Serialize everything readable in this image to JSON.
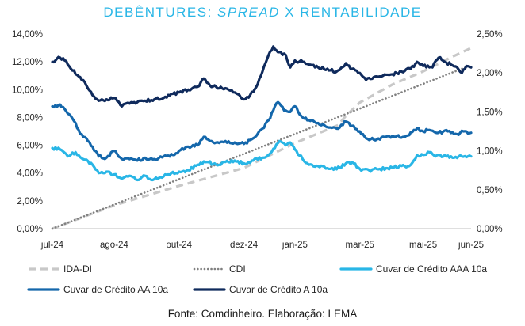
{
  "chart_data": {
    "type": "line",
    "title_parts": {
      "before": "DEBÊNTURES: ",
      "italic": "SPREAD",
      "after": " X RENTABILIDADE"
    },
    "x_labels": [
      "jul-24",
      "ago-24",
      "out-24",
      "dez-24",
      "jan-25",
      "mar-25",
      "mai-25",
      "jun-25"
    ],
    "x_label_index": [
      0,
      40,
      82,
      124,
      157,
      199,
      240,
      271
    ],
    "n_points": 272,
    "y_left": {
      "ticks": [
        "0,00%",
        "2,00%",
        "4,00%",
        "6,00%",
        "8,00%",
        "10,00%",
        "12,00%",
        "14,00%"
      ],
      "range": [
        0,
        14
      ]
    },
    "y_right": {
      "ticks": [
        "0,00%",
        "0,50%",
        "1,00%",
        "1,50%",
        "2,00%",
        "2,50%"
      ],
      "range": [
        0,
        2.5
      ]
    },
    "grid": false,
    "legend_position": "bottom",
    "series": [
      {
        "name": "IDA-DI",
        "axis": "right",
        "style": "dashed",
        "color": "#c8c8c8",
        "points": [
          [
            0,
            0
          ],
          [
            40,
            0.3
          ],
          [
            82,
            0.55
          ],
          [
            124,
            0.78
          ],
          [
            157,
            1.1
          ],
          [
            185,
            1.33
          ],
          [
            190,
            1.45
          ],
          [
            199,
            1.62
          ],
          [
            220,
            1.85
          ],
          [
            240,
            2.02
          ],
          [
            258,
            2.2
          ],
          [
            271,
            2.32
          ]
        ]
      },
      {
        "name": "CDI",
        "axis": "right",
        "style": "dotted",
        "color": "#808080",
        "points": [
          [
            0,
            0
          ],
          [
            271,
            2.1
          ]
        ]
      },
      {
        "name": "Cuvar de Crédito AAA 10a",
        "axis": "left",
        "style": "solid",
        "color": "#29b6e6",
        "points": [
          [
            0,
            5.8
          ],
          [
            5,
            5.7
          ],
          [
            10,
            5.2
          ],
          [
            15,
            5.5
          ],
          [
            20,
            5.0
          ],
          [
            26,
            4.6
          ],
          [
            30,
            4.0
          ],
          [
            35,
            4.1
          ],
          [
            40,
            3.9
          ],
          [
            45,
            3.6
          ],
          [
            50,
            3.8
          ],
          [
            55,
            3.5
          ],
          [
            60,
            3.8
          ],
          [
            65,
            3.5
          ],
          [
            70,
            3.7
          ],
          [
            75,
            3.9
          ],
          [
            82,
            4.1
          ],
          [
            88,
            4.2
          ],
          [
            94,
            4.6
          ],
          [
            100,
            4.8
          ],
          [
            106,
            4.6
          ],
          [
            112,
            4.8
          ],
          [
            118,
            4.9
          ],
          [
            124,
            4.7
          ],
          [
            130,
            4.9
          ],
          [
            136,
            5.1
          ],
          [
            140,
            5.3
          ],
          [
            144,
            5.8
          ],
          [
            147,
            6.3
          ],
          [
            151,
            6.0
          ],
          [
            154,
            6.2
          ],
          [
            157,
            5.7
          ],
          [
            162,
            5.0
          ],
          [
            166,
            4.6
          ],
          [
            172,
            4.5
          ],
          [
            180,
            4.3
          ],
          [
            186,
            4.4
          ],
          [
            190,
            4.7
          ],
          [
            195,
            4.7
          ],
          [
            199,
            4.3
          ],
          [
            205,
            4.2
          ],
          [
            212,
            4.3
          ],
          [
            220,
            4.4
          ],
          [
            228,
            4.5
          ],
          [
            232,
            4.6
          ],
          [
            236,
            5.3
          ],
          [
            240,
            5.3
          ],
          [
            244,
            5.5
          ],
          [
            248,
            5.2
          ],
          [
            254,
            5.3
          ],
          [
            260,
            5.1
          ],
          [
            265,
            5.2
          ],
          [
            271,
            5.2
          ]
        ]
      },
      {
        "name": "Cuvar de Crédito AA 10a",
        "axis": "left",
        "style": "solid",
        "color": "#1467ab",
        "points": [
          [
            0,
            8.8
          ],
          [
            4,
            8.9
          ],
          [
            8,
            8.6
          ],
          [
            12,
            8.1
          ],
          [
            15,
            7.6
          ],
          [
            18,
            6.8
          ],
          [
            22,
            6.5
          ],
          [
            26,
            5.9
          ],
          [
            30,
            5.2
          ],
          [
            35,
            5.1
          ],
          [
            40,
            5.6
          ],
          [
            45,
            5.0
          ],
          [
            50,
            5.0
          ],
          [
            55,
            4.9
          ],
          [
            60,
            5.1
          ],
          [
            66,
            5.0
          ],
          [
            72,
            5.2
          ],
          [
            78,
            5.3
          ],
          [
            82,
            5.6
          ],
          [
            88,
            5.9
          ],
          [
            94,
            6.0
          ],
          [
            98,
            6.6
          ],
          [
            102,
            6.3
          ],
          [
            106,
            6.2
          ],
          [
            112,
            6.3
          ],
          [
            118,
            6.2
          ],
          [
            124,
            6.1
          ],
          [
            130,
            6.5
          ],
          [
            136,
            7.2
          ],
          [
            140,
            7.8
          ],
          [
            144,
            8.8
          ],
          [
            146,
            9.1
          ],
          [
            150,
            8.5
          ],
          [
            154,
            8.4
          ],
          [
            157,
            8.8
          ],
          [
            162,
            8.0
          ],
          [
            166,
            7.8
          ],
          [
            172,
            7.6
          ],
          [
            178,
            7.3
          ],
          [
            184,
            7.2
          ],
          [
            190,
            7.7
          ],
          [
            194,
            7.4
          ],
          [
            199,
            7.0
          ],
          [
            203,
            6.5
          ],
          [
            208,
            6.4
          ],
          [
            215,
            6.6
          ],
          [
            222,
            6.6
          ],
          [
            230,
            6.7
          ],
          [
            236,
            7.2
          ],
          [
            240,
            7.0
          ],
          [
            244,
            7.1
          ],
          [
            250,
            6.9
          ],
          [
            256,
            7.0
          ],
          [
            262,
            6.8
          ],
          [
            266,
            7.0
          ],
          [
            271,
            6.9
          ]
        ]
      },
      {
        "name": "Cuvar de Crédito A 10a",
        "axis": "left",
        "style": "solid",
        "color": "#0f2a5c",
        "points": [
          [
            0,
            12.0
          ],
          [
            5,
            12.3
          ],
          [
            8,
            12.1
          ],
          [
            12,
            11.5
          ],
          [
            18,
            10.9
          ],
          [
            22,
            10.3
          ],
          [
            26,
            9.6
          ],
          [
            30,
            9.2
          ],
          [
            35,
            9.3
          ],
          [
            40,
            9.4
          ],
          [
            45,
            8.8
          ],
          [
            50,
            9.0
          ],
          [
            55,
            9.1
          ],
          [
            60,
            9.2
          ],
          [
            66,
            9.3
          ],
          [
            72,
            9.4
          ],
          [
            78,
            9.7
          ],
          [
            82,
            9.8
          ],
          [
            88,
            10.0
          ],
          [
            94,
            10.2
          ],
          [
            98,
            10.8
          ],
          [
            102,
            10.3
          ],
          [
            106,
            10.2
          ],
          [
            112,
            10.1
          ],
          [
            118,
            9.8
          ],
          [
            124,
            9.3
          ],
          [
            128,
            9.6
          ],
          [
            132,
            10.2
          ],
          [
            136,
            11.3
          ],
          [
            140,
            12.5
          ],
          [
            143,
            13.1
          ],
          [
            147,
            12.7
          ],
          [
            151,
            12.5
          ],
          [
            154,
            11.6
          ],
          [
            157,
            12.1
          ],
          [
            162,
            12.0
          ],
          [
            166,
            11.8
          ],
          [
            172,
            11.6
          ],
          [
            178,
            11.5
          ],
          [
            184,
            11.3
          ],
          [
            190,
            11.9
          ],
          [
            194,
            11.5
          ],
          [
            199,
            11.2
          ],
          [
            203,
            10.7
          ],
          [
            208,
            10.9
          ],
          [
            214,
            11.0
          ],
          [
            220,
            11.1
          ],
          [
            226,
            11.3
          ],
          [
            232,
            11.5
          ],
          [
            236,
            12.0
          ],
          [
            240,
            11.7
          ],
          [
            246,
            11.6
          ],
          [
            250,
            12.3
          ],
          [
            254,
            12.0
          ],
          [
            258,
            11.8
          ],
          [
            262,
            11.6
          ],
          [
            265,
            11.2
          ],
          [
            268,
            11.7
          ],
          [
            271,
            11.6
          ]
        ]
      }
    ]
  },
  "legend": [
    {
      "label": "IDA-DI",
      "series": 0
    },
    {
      "label": "CDI",
      "series": 1
    },
    {
      "label": "Cuvar de Crédito AAA 10a",
      "series": 2
    },
    {
      "label": "Cuvar de Crédito AA 10a",
      "series": 3
    },
    {
      "label": "Cuvar de Crédito A 10a",
      "series": 4
    }
  ],
  "source_note": "Fonte: Comdinheiro. Elaboração: LEMA"
}
